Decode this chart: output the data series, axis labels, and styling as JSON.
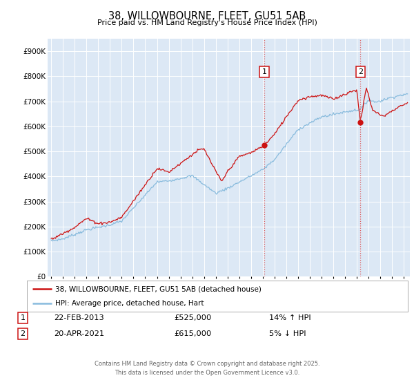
{
  "title": "38, WILLOWBOURNE, FLEET, GU51 5AB",
  "subtitle": "Price paid vs. HM Land Registry's House Price Index (HPI)",
  "ylim": [
    0,
    950000
  ],
  "xlim": [
    1994.7,
    2025.5
  ],
  "plot_bg_color": "#dce8f5",
  "grid_color": "#ffffff",
  "red_line_color": "#cc1111",
  "blue_line_color": "#88bbdd",
  "marker1_date": 2013.12,
  "marker2_date": 2021.29,
  "marker1_value": 525000,
  "marker2_value": 615000,
  "sale1_date_str": "22-FEB-2013",
  "sale1_price_str": "£525,000",
  "sale1_hpi_str": "14% ↑ HPI",
  "sale2_date_str": "20-APR-2021",
  "sale2_price_str": "£615,000",
  "sale2_hpi_str": "5% ↓ HPI",
  "legend_label1": "38, WILLOWBOURNE, FLEET, GU51 5AB (detached house)",
  "legend_label2": "HPI: Average price, detached house, Hart",
  "footer_text": "Contains HM Land Registry data © Crown copyright and database right 2025.\nThis data is licensed under the Open Government Licence v3.0.",
  "yticks": [
    0,
    100000,
    200000,
    300000,
    400000,
    500000,
    600000,
    700000,
    800000,
    900000
  ],
  "ytick_labels": [
    "£0",
    "£100K",
    "£200K",
    "£300K",
    "£400K",
    "£500K",
    "£600K",
    "£700K",
    "£800K",
    "£900K"
  ]
}
